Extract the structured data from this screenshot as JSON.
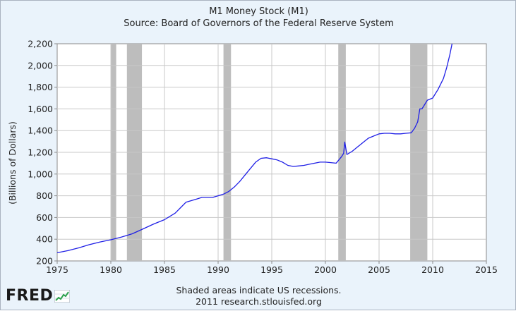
{
  "title": "M1 Money Stock (M1)",
  "subtitle": "Source: Board of Governors of the Federal Reserve System",
  "footer": {
    "note": "Shaded areas indicate US recessions.",
    "credit": "2011 research.stlouisfed.org"
  },
  "logo": {
    "text": "FRED",
    "icon": "line-chart-icon"
  },
  "colors": {
    "background": "#eaf3fb",
    "plot": "#ffffff",
    "grid": "#c8c8c8",
    "series": "#1f1fe6",
    "recession": "#bdbdbd"
  },
  "chart_data": {
    "type": "line",
    "title": "M1 Money Stock (M1)",
    "xlabel": "",
    "ylabel": "(Billions of Dollars)",
    "xlim": [
      1975,
      2015
    ],
    "ylim": [
      200,
      2200
    ],
    "x_ticks": [
      1975,
      1980,
      1985,
      1990,
      1995,
      2000,
      2005,
      2010,
      2015
    ],
    "x_tick_labels": [
      "1975",
      "1980",
      "1985",
      "1990",
      "1995",
      "2000",
      "2005",
      "2010",
      "2015"
    ],
    "y_ticks": [
      200,
      400,
      600,
      800,
      1000,
      1200,
      1400,
      1600,
      1800,
      2000,
      2200
    ],
    "y_tick_labels": [
      "200",
      "400",
      "600",
      "800",
      "1,000",
      "1,200",
      "1,400",
      "1,600",
      "1,800",
      "2,000",
      "2,200"
    ],
    "grid": true,
    "recessions": [
      {
        "start": 1980.0,
        "end": 1980.5
      },
      {
        "start": 1981.5,
        "end": 1982.9
      },
      {
        "start": 1990.5,
        "end": 1991.2
      },
      {
        "start": 2001.2,
        "end": 2001.9
      },
      {
        "start": 2007.9,
        "end": 2009.5
      }
    ],
    "series": [
      {
        "name": "M1",
        "x": [
          1975,
          1976,
          1977,
          1978,
          1979,
          1980,
          1981,
          1982,
          1983,
          1984,
          1985,
          1986,
          1986.5,
          1987,
          1987.5,
          1988,
          1988.5,
          1989,
          1989.5,
          1990,
          1990.5,
          1991,
          1991.5,
          1992,
          1992.5,
          1993,
          1993.5,
          1994,
          1994.5,
          1995,
          1995.5,
          1996,
          1996.5,
          1997,
          1997.5,
          1998,
          1998.5,
          1999,
          1999.5,
          2000,
          2000.5,
          2001,
          2001.5,
          2001.7,
          2001.8,
          2002,
          2002.5,
          2003,
          2003.5,
          2004,
          2004.5,
          2005,
          2005.5,
          2006,
          2006.5,
          2007,
          2007.5,
          2008,
          2008.3,
          2008.6,
          2008.8,
          2009,
          2009.5,
          2010,
          2010.5,
          2011,
          2011.3,
          2011.6,
          2011.8
        ],
        "values": [
          275,
          295,
          320,
          350,
          375,
          395,
          420,
          450,
          495,
          540,
          580,
          640,
          690,
          740,
          755,
          770,
          785,
          785,
          785,
          800,
          815,
          840,
          880,
          930,
          990,
          1050,
          1110,
          1145,
          1150,
          1140,
          1130,
          1110,
          1080,
          1070,
          1075,
          1080,
          1090,
          1100,
          1110,
          1110,
          1105,
          1100,
          1160,
          1190,
          1295,
          1180,
          1210,
          1250,
          1290,
          1330,
          1350,
          1370,
          1375,
          1375,
          1370,
          1370,
          1375,
          1380,
          1420,
          1480,
          1600,
          1600,
          1680,
          1700,
          1780,
          1880,
          1980,
          2100,
          2200
        ]
      }
    ]
  }
}
